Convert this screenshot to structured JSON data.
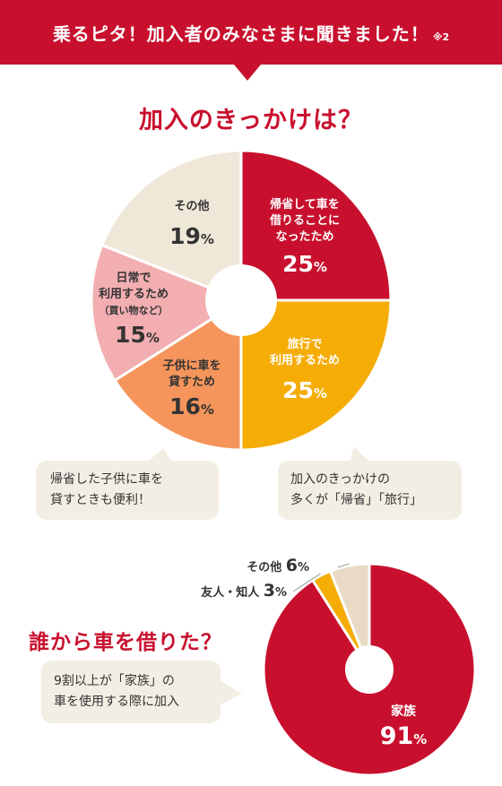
{
  "banner": {
    "title": "乗るピタ！加入者のみなさまに聞きました！",
    "note": "※2"
  },
  "section1": {
    "heading": "加入のきっかけは？",
    "bubble_left": [
      "帰省した子供に車を",
      "貸すときも便利！"
    ],
    "bubble_right": [
      "加入のきっかけの",
      "多くが「帰省」「旅行」"
    ]
  },
  "section2": {
    "heading": "誰から車を借りた？",
    "bubble": [
      "9割以上が「家族」の",
      "車を使用する際に加入"
    ]
  },
  "chart_data": [
    {
      "type": "pie",
      "title": "加入のきっかけは？",
      "slices": [
        {
          "label_lines": [
            "帰省して車を",
            "借りることに",
            "なったため"
          ],
          "value": 25,
          "value_text": "25",
          "unit": "%",
          "color": "#c8102e",
          "text_color": "#ffffff"
        },
        {
          "label_lines": [
            "旅行で",
            "利用するため"
          ],
          "value": 25,
          "value_text": "25",
          "unit": "%",
          "color": "#f5ad06",
          "text_color": "#ffffff"
        },
        {
          "label_lines": [
            "子供に車を",
            "貸すため"
          ],
          "value": 16,
          "value_text": "16",
          "unit": "%",
          "color": "#f5955b",
          "text_color": "#333333"
        },
        {
          "label_lines": [
            "日常で",
            "利用するため",
            "（買い物など）"
          ],
          "value": 15,
          "value_text": "15",
          "unit": "%",
          "color": "#f2aeb1",
          "text_color": "#333333"
        },
        {
          "label_lines": [
            "その他"
          ],
          "value": 19,
          "value_text": "19",
          "unit": "%",
          "color": "#efe8d8",
          "text_color": "#333333"
        }
      ]
    },
    {
      "type": "pie",
      "title": "誰から車を借りた？",
      "slices": [
        {
          "label": "家族",
          "value": 91,
          "value_text": "91",
          "unit": "%",
          "color": "#c8102e"
        },
        {
          "label": "友人・知人",
          "value": 3,
          "value_text": "3",
          "unit": "%",
          "color": "#f5ad06"
        },
        {
          "label": "その他",
          "value": 6,
          "value_text": "6",
          "unit": "%",
          "color": "#e8dac4"
        }
      ]
    }
  ]
}
